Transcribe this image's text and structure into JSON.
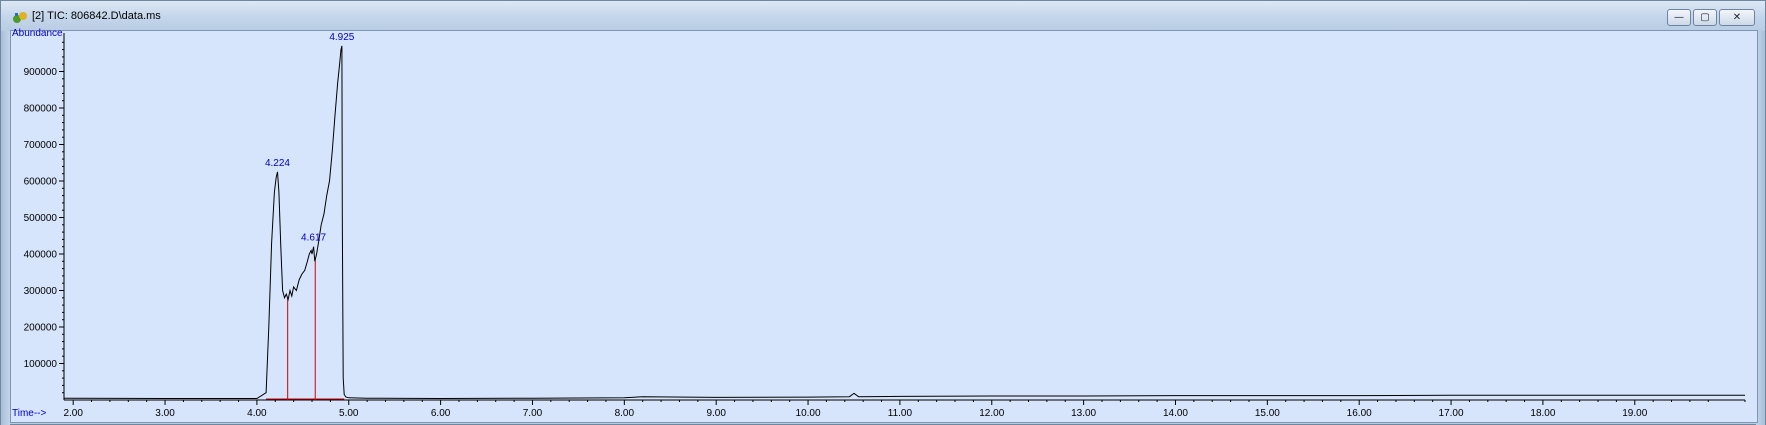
{
  "window": {
    "title": "[2] TIC: 806842.D\\data.ms",
    "buttons": {
      "minimize": "—",
      "restore": "▢",
      "close": "✕"
    }
  },
  "chart_data": {
    "type": "line",
    "ylabel": "Abundance",
    "xlabel": "Time-->",
    "xlim": [
      1.9,
      20.2
    ],
    "ylim": [
      0,
      1000000
    ],
    "x_ticks": [
      2.0,
      3.0,
      4.0,
      5.0,
      6.0,
      7.0,
      8.0,
      9.0,
      10.0,
      11.0,
      12.0,
      13.0,
      14.0,
      15.0,
      16.0,
      17.0,
      18.0,
      19.0
    ],
    "x_tick_labels": [
      "2.00",
      "3.00",
      "4.00",
      "5.00",
      "6.00",
      "7.00",
      "8.00",
      "9.00",
      "10.00",
      "11.00",
      "12.00",
      "13.00",
      "14.00",
      "15.00",
      "16.00",
      "17.00",
      "18.00",
      "19.00"
    ],
    "y_ticks": [
      100000,
      200000,
      300000,
      400000,
      500000,
      600000,
      700000,
      800000,
      900000
    ],
    "y_tick_labels": [
      "100000",
      "200000",
      "300000",
      "400000",
      "500000",
      "600000",
      "700000",
      "800000",
      "900000"
    ],
    "series": [
      {
        "color": "#000000",
        "x": [
          1.9,
          2.0,
          3.0,
          4.0,
          4.1,
          4.13,
          4.16,
          4.19,
          4.21,
          4.224,
          4.24,
          4.26,
          4.28,
          4.3,
          4.32,
          4.34,
          4.36,
          4.38,
          4.4,
          4.43,
          4.46,
          4.49,
          4.52,
          4.55,
          4.57,
          4.59,
          4.6,
          4.617,
          4.63,
          4.65,
          4.67,
          4.7,
          4.73,
          4.76,
          4.79,
          4.82,
          4.85,
          4.88,
          4.9,
          4.915,
          4.925,
          4.93,
          4.94,
          4.95,
          4.97,
          5.0,
          5.2,
          6.0,
          7.0,
          8.0,
          8.2,
          9.0,
          10.0,
          10.45,
          10.5,
          10.55,
          11.0,
          12.0,
          13.0,
          14.0,
          15.0,
          16.0,
          17.0,
          18.0,
          19.0,
          20.2
        ],
        "y": [
          5000,
          5000,
          4000,
          4000,
          20000,
          200000,
          430000,
          570000,
          610000,
          625000,
          570000,
          420000,
          300000,
          280000,
          290000,
          275000,
          300000,
          285000,
          310000,
          300000,
          330000,
          345000,
          355000,
          380000,
          400000,
          410000,
          400000,
          420000,
          380000,
          400000,
          430000,
          480000,
          510000,
          560000,
          600000,
          680000,
          780000,
          870000,
          920000,
          960000,
          970000,
          500000,
          60000,
          15000,
          8000,
          6000,
          5000,
          4000,
          5000,
          6000,
          9000,
          7000,
          8000,
          9000,
          18000,
          9000,
          10000,
          11000,
          11000,
          12000,
          12000,
          12000,
          13000,
          13000,
          13000,
          13000
        ]
      }
    ],
    "peaks": [
      {
        "time": 4.224,
        "label": "4.224",
        "baseline_split": 4.335
      },
      {
        "time": 4.617,
        "label": "4.617",
        "baseline_split": 4.635
      },
      {
        "time": 4.925,
        "label": "4.925"
      }
    ]
  }
}
